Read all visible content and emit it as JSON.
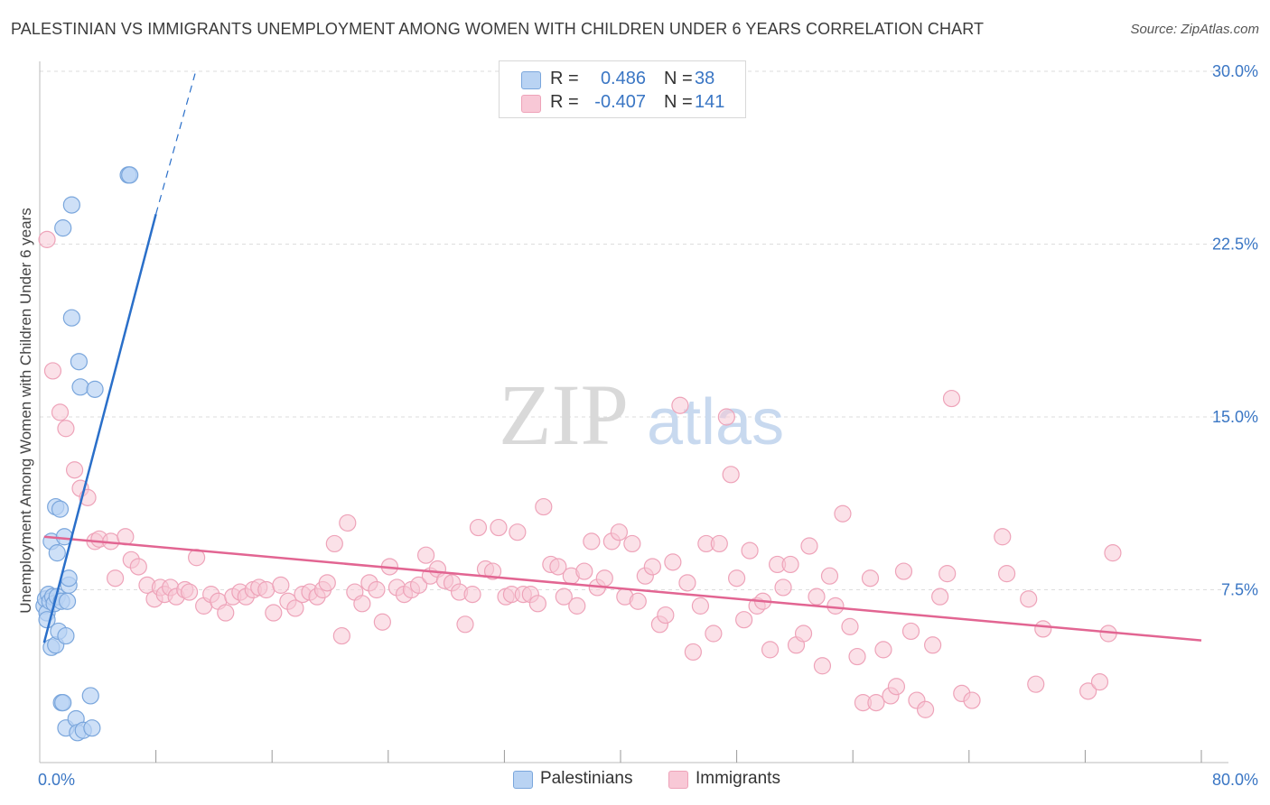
{
  "title": "PALESTINIAN VS IMMIGRANTS UNEMPLOYMENT AMONG WOMEN WITH CHILDREN UNDER 6 YEARS CORRELATION CHART",
  "source": "Source: ZipAtlas.com",
  "watermark": {
    "zip": "ZIP",
    "atlas": "atlas"
  },
  "legend": {
    "rows": [
      {
        "r_label": "R =",
        "r_value": "0.486",
        "n_label": "N =",
        "n_value": "38"
      },
      {
        "r_label": "R =",
        "r_value": "-0.407",
        "n_label": "N =",
        "n_value": "141"
      }
    ]
  },
  "bottom_legend": {
    "series1": "Palestinians",
    "series2": "Immigrants"
  },
  "colors": {
    "palestinians_fill": "#b9d3f3",
    "palestinians_stroke": "#7aa6dc",
    "palestinians_line": "#2a6fc9",
    "immigrants_fill": "#f8c8d6",
    "immigrants_stroke": "#eea3b9",
    "immigrants_line": "#e26592",
    "axis_text": "#3a76c4",
    "grid": "#dddddd"
  },
  "chart_data": {
    "type": "scatter",
    "title": "PALESTINIAN VS IMMIGRANTS UNEMPLOYMENT AMONG WOMEN WITH CHILDREN UNDER 6 YEARS CORRELATION CHART",
    "xlabel": "",
    "ylabel": "Unemployment Among Women with Children Under 6 years",
    "xlim": [
      0,
      80
    ],
    "ylim": [
      0,
      30
    ],
    "x_tick_labels": [
      {
        "value": 0,
        "label": "0.0%"
      },
      {
        "value": 80,
        "label": "80.0%"
      }
    ],
    "y_tick_labels": [
      {
        "value": 7.5,
        "label": "7.5%"
      },
      {
        "value": 15,
        "label": "15.0%"
      },
      {
        "value": 22.5,
        "label": "22.5%"
      },
      {
        "value": 30,
        "label": "30.0%"
      }
    ],
    "series": [
      {
        "name": "Palestinians",
        "r": 0.486,
        "n": 38,
        "trend": {
          "x1": 0.3,
          "y1": 5.2,
          "x2": 8.0,
          "y2": 23.8,
          "dash_x2": 10.7,
          "dash_y2": 29.9
        },
        "points": [
          [
            0.3,
            6.8
          ],
          [
            0.4,
            7.1
          ],
          [
            0.5,
            6.5
          ],
          [
            0.5,
            6.2
          ],
          [
            0.6,
            7.3
          ],
          [
            0.7,
            7.0
          ],
          [
            0.8,
            9.6
          ],
          [
            0.8,
            5.0
          ],
          [
            0.9,
            7.2
          ],
          [
            1.0,
            6.9
          ],
          [
            1.1,
            11.1
          ],
          [
            1.1,
            5.1
          ],
          [
            1.2,
            7.2
          ],
          [
            1.2,
            9.1
          ],
          [
            1.3,
            5.7
          ],
          [
            1.4,
            11.0
          ],
          [
            1.5,
            7.0
          ],
          [
            1.5,
            2.6
          ],
          [
            1.6,
            2.6
          ],
          [
            1.6,
            23.2
          ],
          [
            1.7,
            9.8
          ],
          [
            1.8,
            5.5
          ],
          [
            1.8,
            1.5
          ],
          [
            1.9,
            7.0
          ],
          [
            2.0,
            7.7
          ],
          [
            2.0,
            8.0
          ],
          [
            2.2,
            24.2
          ],
          [
            2.2,
            19.3
          ],
          [
            2.5,
            1.9
          ],
          [
            2.6,
            1.3
          ],
          [
            2.7,
            17.4
          ],
          [
            2.8,
            16.3
          ],
          [
            3.0,
            1.4
          ],
          [
            3.5,
            2.9
          ],
          [
            3.6,
            1.5
          ],
          [
            3.8,
            16.2
          ],
          [
            6.1,
            25.5
          ],
          [
            6.2,
            25.5
          ]
        ]
      },
      {
        "name": "Immigrants",
        "r": -0.407,
        "n": 141,
        "trend": {
          "x1": 0.3,
          "y1": 9.8,
          "x2": 80.0,
          "y2": 5.3
        },
        "points": [
          [
            0.5,
            22.7
          ],
          [
            0.9,
            17.0
          ],
          [
            1.4,
            15.2
          ],
          [
            1.8,
            14.5
          ],
          [
            2.4,
            12.7
          ],
          [
            2.8,
            11.9
          ],
          [
            3.3,
            11.5
          ],
          [
            3.8,
            9.6
          ],
          [
            4.1,
            9.7
          ],
          [
            4.9,
            9.6
          ],
          [
            5.2,
            8.0
          ],
          [
            5.9,
            9.8
          ],
          [
            6.3,
            8.8
          ],
          [
            6.8,
            8.5
          ],
          [
            7.4,
            7.7
          ],
          [
            7.9,
            7.1
          ],
          [
            8.3,
            7.6
          ],
          [
            8.6,
            7.3
          ],
          [
            9.0,
            7.6
          ],
          [
            9.4,
            7.2
          ],
          [
            10.0,
            7.5
          ],
          [
            10.3,
            7.4
          ],
          [
            10.8,
            8.9
          ],
          [
            11.3,
            6.8
          ],
          [
            11.8,
            7.3
          ],
          [
            12.3,
            7.0
          ],
          [
            12.8,
            6.5
          ],
          [
            13.3,
            7.2
          ],
          [
            13.8,
            7.4
          ],
          [
            14.2,
            7.2
          ],
          [
            14.7,
            7.5
          ],
          [
            15.1,
            7.6
          ],
          [
            15.6,
            7.5
          ],
          [
            16.1,
            6.5
          ],
          [
            16.6,
            7.7
          ],
          [
            17.1,
            7.0
          ],
          [
            17.6,
            6.7
          ],
          [
            18.1,
            7.3
          ],
          [
            18.6,
            7.4
          ],
          [
            19.1,
            7.2
          ],
          [
            19.5,
            7.5
          ],
          [
            19.8,
            7.8
          ],
          [
            20.3,
            9.5
          ],
          [
            20.8,
            5.5
          ],
          [
            21.2,
            10.4
          ],
          [
            21.7,
            7.4
          ],
          [
            22.2,
            6.9
          ],
          [
            22.7,
            7.8
          ],
          [
            23.2,
            7.5
          ],
          [
            23.6,
            6.1
          ],
          [
            24.1,
            8.5
          ],
          [
            24.6,
            7.6
          ],
          [
            25.1,
            7.3
          ],
          [
            25.6,
            7.5
          ],
          [
            26.1,
            7.7
          ],
          [
            26.6,
            9.0
          ],
          [
            26.9,
            8.1
          ],
          [
            27.4,
            8.4
          ],
          [
            27.9,
            7.9
          ],
          [
            28.4,
            7.8
          ],
          [
            28.9,
            7.4
          ],
          [
            29.3,
            6.0
          ],
          [
            29.8,
            7.3
          ],
          [
            30.2,
            10.2
          ],
          [
            30.7,
            8.4
          ],
          [
            31.2,
            8.3
          ],
          [
            31.6,
            10.2
          ],
          [
            32.1,
            7.2
          ],
          [
            32.5,
            7.3
          ],
          [
            32.9,
            10.0
          ],
          [
            33.3,
            7.3
          ],
          [
            33.8,
            7.3
          ],
          [
            34.3,
            6.9
          ],
          [
            34.7,
            11.1
          ],
          [
            35.2,
            8.6
          ],
          [
            35.7,
            8.5
          ],
          [
            36.1,
            7.2
          ],
          [
            36.6,
            8.1
          ],
          [
            37.0,
            6.8
          ],
          [
            37.5,
            8.3
          ],
          [
            38.0,
            9.6
          ],
          [
            38.4,
            7.6
          ],
          [
            38.9,
            8.0
          ],
          [
            39.4,
            9.6
          ],
          [
            39.9,
            10.0
          ],
          [
            40.3,
            7.2
          ],
          [
            40.8,
            9.5
          ],
          [
            41.2,
            7.0
          ],
          [
            41.7,
            8.1
          ],
          [
            42.2,
            8.5
          ],
          [
            42.7,
            6.0
          ],
          [
            43.1,
            6.4
          ],
          [
            43.6,
            8.7
          ],
          [
            44.1,
            15.5
          ],
          [
            44.6,
            7.8
          ],
          [
            45.0,
            4.8
          ],
          [
            45.5,
            6.8
          ],
          [
            45.9,
            9.5
          ],
          [
            46.4,
            5.6
          ],
          [
            46.8,
            9.5
          ],
          [
            47.3,
            15.0
          ],
          [
            47.6,
            12.5
          ],
          [
            48.0,
            8.0
          ],
          [
            48.5,
            6.2
          ],
          [
            48.9,
            9.2
          ],
          [
            49.4,
            6.8
          ],
          [
            49.8,
            7.0
          ],
          [
            50.3,
            4.9
          ],
          [
            50.8,
            8.6
          ],
          [
            51.2,
            7.6
          ],
          [
            51.7,
            8.6
          ],
          [
            52.1,
            5.1
          ],
          [
            52.6,
            5.6
          ],
          [
            53.0,
            9.4
          ],
          [
            53.5,
            7.2
          ],
          [
            53.9,
            4.2
          ],
          [
            54.4,
            8.1
          ],
          [
            54.8,
            6.8
          ],
          [
            55.3,
            10.8
          ],
          [
            55.8,
            5.9
          ],
          [
            56.3,
            4.6
          ],
          [
            56.7,
            2.6
          ],
          [
            57.2,
            8.0
          ],
          [
            57.6,
            2.6
          ],
          [
            58.1,
            4.9
          ],
          [
            58.6,
            2.9
          ],
          [
            59.0,
            3.3
          ],
          [
            59.5,
            8.3
          ],
          [
            60.0,
            5.7
          ],
          [
            60.4,
            2.7
          ],
          [
            61.0,
            2.3
          ],
          [
            61.5,
            5.1
          ],
          [
            62.0,
            7.2
          ],
          [
            62.5,
            8.2
          ],
          [
            62.8,
            15.8
          ],
          [
            63.5,
            3.0
          ],
          [
            64.2,
            2.7
          ],
          [
            66.3,
            9.8
          ],
          [
            66.6,
            8.2
          ],
          [
            68.1,
            7.1
          ],
          [
            68.6,
            3.4
          ],
          [
            69.1,
            5.8
          ],
          [
            72.2,
            3.1
          ],
          [
            73.0,
            3.5
          ],
          [
            73.6,
            5.6
          ],
          [
            73.9,
            9.1
          ]
        ]
      }
    ]
  }
}
